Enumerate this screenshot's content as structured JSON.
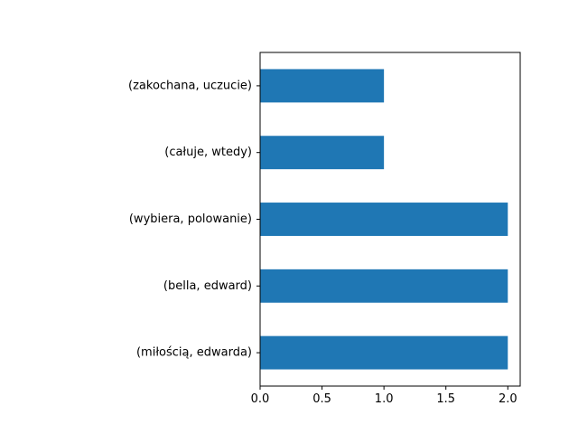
{
  "chart_data": {
    "type": "bar",
    "orientation": "horizontal",
    "title": "",
    "xlabel": "",
    "ylabel": "",
    "categories": [
      "(zakochana, uczucie)",
      "(całuje, wtedy)",
      "(wybiera, polowanie)",
      "(bella, edward)",
      "(miłością, edwarda)"
    ],
    "values": [
      1,
      1,
      2,
      2,
      2
    ],
    "xlim": [
      0,
      2.1
    ],
    "xticks": [
      0,
      0.5,
      1,
      1.5,
      2
    ],
    "xtick_labels": [
      "0.0",
      "0.5",
      "1.0",
      "1.5",
      "2.0"
    ],
    "grid": false,
    "legend": "none",
    "bar_color": "#1f77b4"
  }
}
